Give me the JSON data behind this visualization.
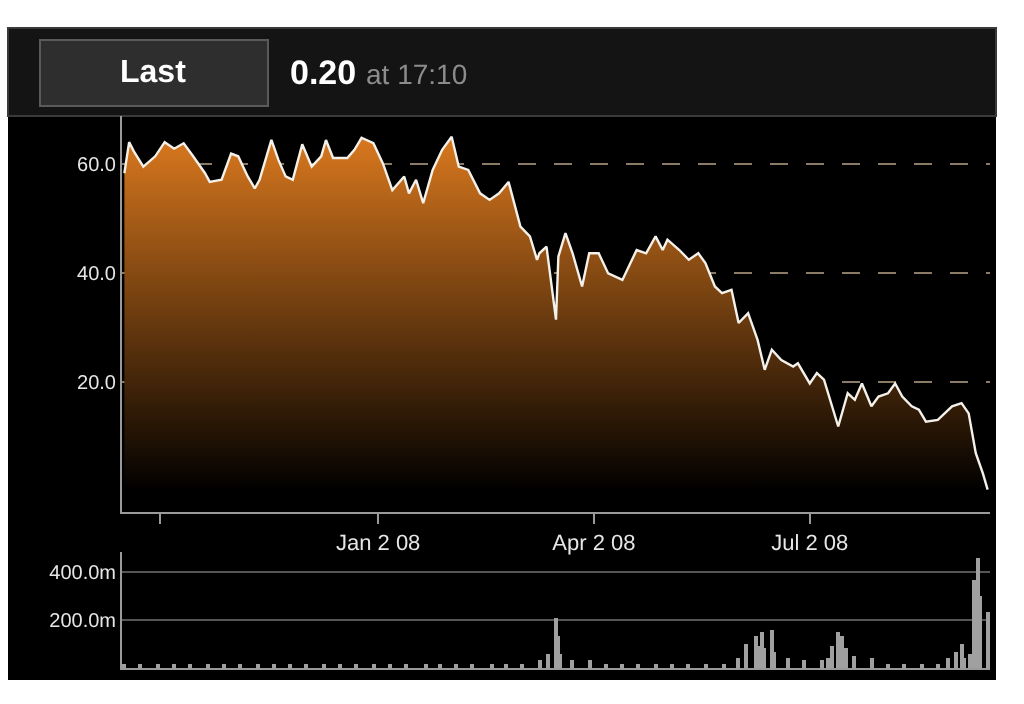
{
  "chart_data": [
    {
      "type": "area",
      "title": "0.20",
      "subtitle": "at 17:10",
      "annotations": [
        "Last"
      ],
      "x": [
        "2007-09-17",
        "2007-09-19",
        "2007-09-21",
        "2007-09-25",
        "2007-09-30",
        "2007-10-04",
        "2007-10-08",
        "2007-10-12",
        "2007-10-16",
        "2007-10-21",
        "2007-10-23",
        "2007-10-28",
        "2007-11-01",
        "2007-11-04",
        "2007-11-08",
        "2007-11-11",
        "2007-11-13",
        "2007-11-18",
        "2007-11-21",
        "2007-11-24",
        "2007-11-27",
        "2007-12-01",
        "2007-12-05",
        "2007-12-09",
        "2007-12-11",
        "2007-12-14",
        "2007-12-20",
        "2007-12-23",
        "2007-12-26",
        "2007-12-31",
        "2008-01-04",
        "2008-01-08",
        "2008-01-13",
        "2008-01-15",
        "2008-01-18",
        "2008-01-21",
        "2008-01-25",
        "2008-01-29",
        "2008-02-02",
        "2008-02-05",
        "2008-02-09",
        "2008-02-14",
        "2008-02-18",
        "2008-02-22",
        "2008-02-26",
        "2008-03-02",
        "2008-03-06",
        "2008-03-09",
        "2008-03-10",
        "2008-03-13",
        "2008-03-17",
        "2008-03-18",
        "2008-03-21",
        "2008-03-24",
        "2008-03-28",
        "2008-03-31",
        "2008-04-04",
        "2008-04-08",
        "2008-04-14",
        "2008-04-20",
        "2008-04-24",
        "2008-04-28",
        "2008-05-01",
        "2008-05-03",
        "2008-05-08",
        "2008-05-12",
        "2008-05-16",
        "2008-05-19",
        "2008-05-23",
        "2008-05-26",
        "2008-05-30",
        "2008-06-02",
        "2008-06-06",
        "2008-06-10",
        "2008-06-13",
        "2008-06-16",
        "2008-06-20",
        "2008-06-25",
        "2008-06-27",
        "2008-07-02",
        "2008-07-05",
        "2008-07-08",
        "2008-07-14",
        "2008-07-18",
        "2008-07-21",
        "2008-07-24",
        "2008-07-28",
        "2008-07-31",
        "2008-08-04",
        "2008-08-07",
        "2008-08-10",
        "2008-08-14",
        "2008-08-17",
        "2008-08-20",
        "2008-08-25",
        "2008-08-31",
        "2008-09-04",
        "2008-09-07",
        "2008-09-10",
        "2008-09-13",
        "2008-09-15"
      ],
      "series": [
        {
          "color": "#d9781e",
          "values": [
            58.3,
            64.0,
            62.3,
            59.5,
            61.4,
            64.0,
            62.8,
            63.8,
            61.4,
            58.3,
            56.7,
            57.1,
            61.9,
            61.4,
            57.7,
            55.5,
            57.1,
            64.4,
            60.7,
            57.7,
            57.1,
            63.6,
            59.5,
            61.4,
            64.4,
            61.1,
            61.1,
            62.6,
            64.8,
            63.8,
            60.1,
            55.2,
            57.7,
            54.6,
            57.1,
            52.8,
            58.9,
            62.6,
            65.0,
            59.5,
            58.9,
            54.6,
            53.4,
            54.6,
            56.7,
            48.5,
            46.7,
            42.4,
            43.6,
            44.8,
            31.4,
            43.0,
            47.3,
            43.6,
            37.5,
            43.6,
            43.6,
            39.9,
            38.7,
            44.2,
            43.6,
            46.7,
            44.2,
            46.1,
            44.2,
            42.4,
            43.6,
            41.8,
            37.5,
            36.3,
            36.9,
            30.8,
            32.6,
            27.7,
            22.2,
            25.9,
            24.0,
            22.8,
            23.4,
            19.7,
            21.6,
            20.4,
            11.8,
            17.9,
            16.7,
            19.7,
            15.5,
            17.3,
            17.9,
            19.7,
            17.3,
            15.5,
            14.9,
            12.7,
            13.0,
            15.5,
            16.1,
            14.2,
            6.9,
            3.2,
            0.2
          ]
        }
      ],
      "xlim": [
        "2007-09-16",
        "2008-09-16"
      ],
      "xticks": [
        {
          "value": "2007-10-02",
          "label": null
        },
        {
          "value": "2008-01-02",
          "label": "Jan 2 08"
        },
        {
          "value": "2008-04-02",
          "label": "Apr 2 08"
        },
        {
          "value": "2008-07-02",
          "label": "Jul 2 08"
        }
      ],
      "ylim": [
        -3.9,
        68.8
      ],
      "yticks": [
        {
          "value": 20,
          "label": "20.0"
        },
        {
          "value": 40,
          "label": "40.0"
        },
        {
          "value": 60,
          "label": "60.0"
        }
      ],
      "grid": "y"
    },
    {
      "type": "bar",
      "x": [
        "2007-09-17",
        "2007-09-24",
        "2007-10-01",
        "2007-10-08",
        "2007-10-15",
        "2007-10-22",
        "2007-10-29",
        "2007-11-05",
        "2007-11-12",
        "2007-11-19",
        "2007-11-26",
        "2007-12-03",
        "2007-12-10",
        "2007-12-17",
        "2007-12-24",
        "2007-12-31",
        "2008-01-07",
        "2008-01-14",
        "2008-01-22",
        "2008-01-28",
        "2008-02-04",
        "2008-02-11",
        "2008-02-19",
        "2008-02-25",
        "2008-03-03",
        "2008-03-10",
        "2008-03-14",
        "2008-03-17",
        "2008-03-18",
        "2008-03-19",
        "2008-03-24",
        "2008-03-31",
        "2008-04-07",
        "2008-04-14",
        "2008-04-21",
        "2008-04-28",
        "2008-05-05",
        "2008-05-12",
        "2008-05-19",
        "2008-05-27",
        "2008-06-02",
        "2008-06-05",
        "2008-06-09",
        "2008-06-10",
        "2008-06-12",
        "2008-06-13",
        "2008-06-16",
        "2008-06-17",
        "2008-06-23",
        "2008-06-30",
        "2008-07-07",
        "2008-07-10",
        "2008-07-11",
        "2008-07-14",
        "2008-07-16",
        "2008-07-17",
        "2008-07-21",
        "2008-07-28",
        "2008-08-04",
        "2008-08-11",
        "2008-08-18",
        "2008-08-25",
        "2008-08-29",
        "2008-09-02",
        "2008-09-04",
        "2008-09-05",
        "2008-09-08",
        "2008-09-09",
        "2008-09-11",
        "2008-09-12",
        "2008-09-15"
      ],
      "series": [
        {
          "color": "#a0a0a0",
          "values": [
            20,
            10,
            10,
            10,
            10,
            10,
            10,
            20,
            10,
            20,
            20,
            10,
            20,
            10,
            10,
            10,
            20,
            20,
            20,
            20,
            20,
            10,
            20,
            10,
            20,
            30,
            60,
            210,
            130,
            60,
            30,
            30,
            20,
            20,
            10,
            10,
            10,
            10,
            20,
            20,
            40,
            100,
            130,
            90,
            150,
            80,
            160,
            70,
            40,
            30,
            30,
            40,
            90,
            150,
            130,
            80,
            50,
            40,
            20,
            20,
            20,
            20,
            40,
            70,
            100,
            40,
            60,
            370,
            460,
            300,
            230
          ]
        }
      ],
      "xlim": [
        "2007-09-16",
        "2008-09-16"
      ],
      "ylim": [
        0,
        483
      ],
      "yticks": [
        {
          "value": 200,
          "label": "200.0m"
        },
        {
          "value": 400,
          "label": "400.0m"
        }
      ],
      "grid": "y",
      "tick_labels": "y"
    }
  ]
}
